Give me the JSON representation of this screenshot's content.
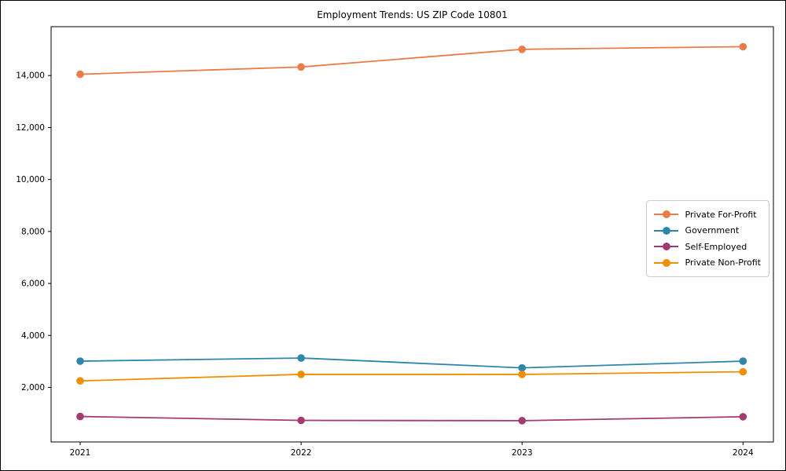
{
  "window": {
    "title": "Employment Trends: US ZIP Code 10801"
  },
  "chart_data": {
    "type": "line",
    "title": "Employment Trends: US ZIP Code 10801",
    "categories": [
      "2021",
      "2022",
      "2023",
      "2024"
    ],
    "series": [
      {
        "name": "Private For-Profit",
        "color": "#e87d4a",
        "values": [
          14050,
          14330,
          15010,
          15110
        ]
      },
      {
        "name": "Government",
        "color": "#2e86ab",
        "values": [
          3010,
          3130,
          2750,
          3010
        ]
      },
      {
        "name": "Self-Employed",
        "color": "#a23b72",
        "values": [
          880,
          730,
          720,
          870
        ]
      },
      {
        "name": "Private Non-Profit",
        "color": "#f18f01",
        "values": [
          2250,
          2500,
          2500,
          2600
        ]
      }
    ],
    "yticks": [
      2000,
      4000,
      6000,
      8000,
      10000,
      12000,
      14000
    ],
    "ytick_labels": [
      "2,000",
      "4,000",
      "6,000",
      "8,000",
      "10,000",
      "12,000",
      "14,000"
    ],
    "ylim": [
      -100,
      15880
    ],
    "xlabel": "",
    "ylabel": "",
    "grid": false,
    "marker": "circle",
    "legend_position": "center right",
    "spine_color": "#000000",
    "background_color": "#ffffff"
  }
}
